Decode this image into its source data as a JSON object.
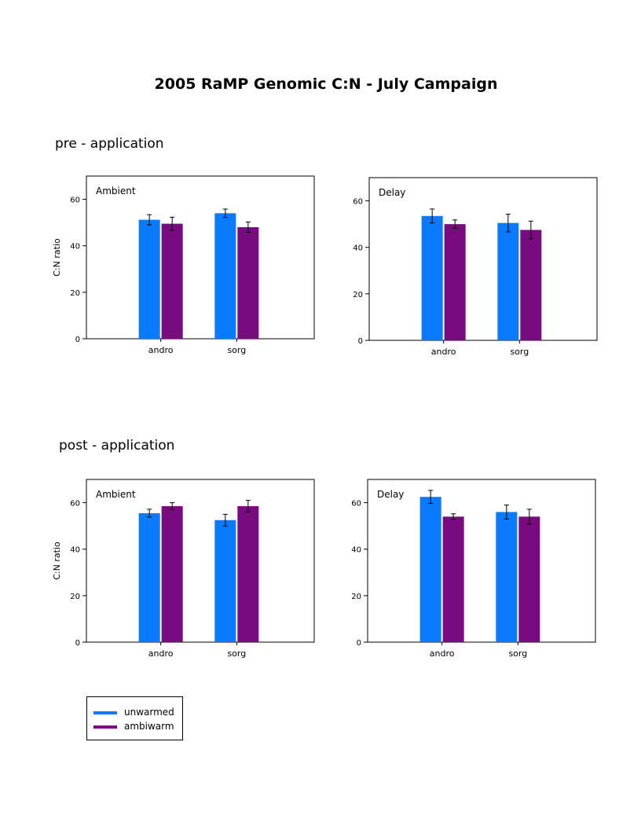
{
  "page": {
    "title": "2005 RaMP Genomic C:N - July Campaign",
    "sections": [
      "pre - application",
      "post - application"
    ]
  },
  "legend": {
    "items": [
      {
        "label": "unwarmed",
        "color": "#0a7bff"
      },
      {
        "label": "ambiwarm",
        "color": "#7a0a80"
      }
    ]
  },
  "chart_data": [
    {
      "type": "bar",
      "section": "pre - application",
      "panel_label": "Ambient",
      "ylabel": "C:N ratio",
      "ylim": [
        0,
        70
      ],
      "yticks": [
        0,
        20,
        40,
        60
      ],
      "categories": [
        "andro",
        "sorg"
      ],
      "series": [
        {
          "name": "unwarmed",
          "values": [
            51.2,
            54.0
          ],
          "errors": [
            2.2,
            1.8
          ]
        },
        {
          "name": "ambiwarm",
          "values": [
            49.5,
            48.0
          ],
          "errors": [
            2.8,
            2.2
          ]
        }
      ]
    },
    {
      "type": "bar",
      "section": "pre - application",
      "panel_label": "Delay",
      "ylabel": "",
      "ylim": [
        0,
        70
      ],
      "yticks": [
        0,
        20,
        40,
        60
      ],
      "categories": [
        "andro",
        "sorg"
      ],
      "series": [
        {
          "name": "unwarmed",
          "values": [
            53.5,
            50.5
          ],
          "errors": [
            3.0,
            3.8
          ]
        },
        {
          "name": "ambiwarm",
          "values": [
            50.0,
            47.5
          ],
          "errors": [
            1.8,
            3.8
          ]
        }
      ]
    },
    {
      "type": "bar",
      "section": "post - application",
      "panel_label": "Ambient",
      "ylabel": "C:N ratio",
      "ylim": [
        0,
        70
      ],
      "yticks": [
        0,
        20,
        40,
        60
      ],
      "categories": [
        "andro",
        "sorg"
      ],
      "series": [
        {
          "name": "unwarmed",
          "values": [
            55.5,
            52.5
          ],
          "errors": [
            1.7,
            2.5
          ]
        },
        {
          "name": "ambiwarm",
          "values": [
            58.5,
            58.5
          ],
          "errors": [
            1.5,
            2.5
          ]
        }
      ]
    },
    {
      "type": "bar",
      "section": "post - application",
      "panel_label": "Delay",
      "ylabel": "",
      "ylim": [
        0,
        70
      ],
      "yticks": [
        0,
        20,
        40,
        60
      ],
      "categories": [
        "andro",
        "sorg"
      ],
      "series": [
        {
          "name": "unwarmed",
          "values": [
            62.5,
            56.0
          ],
          "errors": [
            2.8,
            3.0
          ]
        },
        {
          "name": "ambiwarm",
          "values": [
            54.0,
            54.0
          ],
          "errors": [
            1.2,
            3.2
          ]
        }
      ]
    }
  ]
}
